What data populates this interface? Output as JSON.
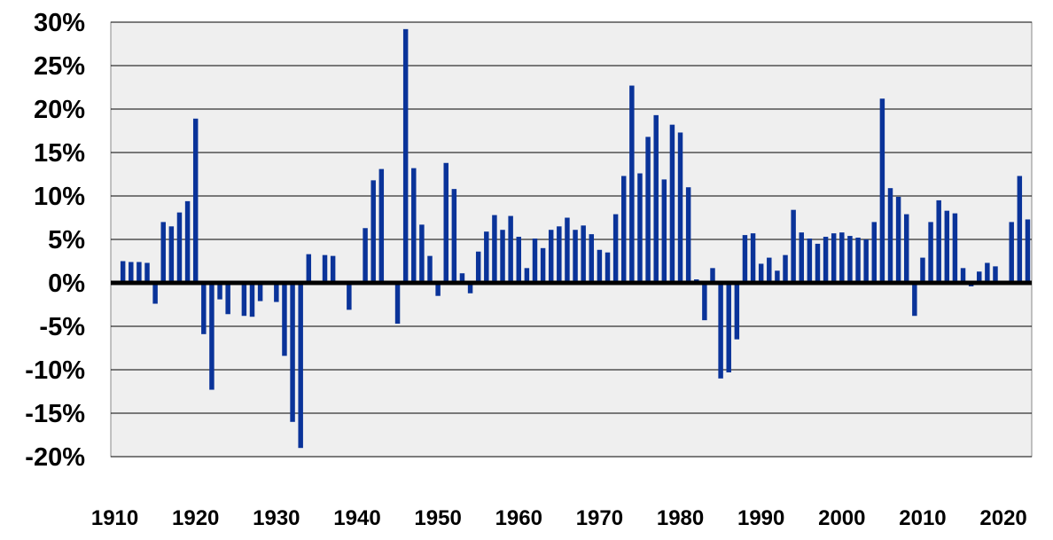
{
  "chart_data": {
    "type": "bar",
    "title": "",
    "xlabel": "",
    "ylabel": "",
    "ylim": [
      -20,
      30
    ],
    "grid": true,
    "legend": "none",
    "y_ticks": [
      30,
      25,
      20,
      15,
      10,
      5,
      0,
      -5,
      -10,
      -15,
      -20
    ],
    "y_tick_labels": [
      "30%",
      "25%",
      "20%",
      "15%",
      "10%",
      "5%",
      "0%",
      "-5%",
      "-10%",
      "-15%",
      "-20%"
    ],
    "x_ticks": [
      1910,
      1920,
      1930,
      1940,
      1950,
      1960,
      1970,
      1980,
      1990,
      2000,
      2010,
      2020
    ],
    "x_tick_labels": [
      "1910",
      "1920",
      "1930",
      "1940",
      "1950",
      "1960",
      "1970",
      "1980",
      "1990",
      "2000",
      "2010",
      "2020"
    ],
    "x_range": [
      1910,
      2023
    ],
    "colors": {
      "bars": "#0a3399",
      "plot_background": "#efefef",
      "gridlines": "#000000",
      "zero_line": "#000000"
    },
    "x": [
      1911,
      1912,
      1913,
      1914,
      1915,
      1916,
      1917,
      1918,
      1919,
      1920,
      1921,
      1922,
      1923,
      1924,
      1925,
      1926,
      1927,
      1928,
      1929,
      1930,
      1931,
      1932,
      1933,
      1934,
      1935,
      1936,
      1937,
      1938,
      1939,
      1940,
      1941,
      1942,
      1943,
      1944,
      1945,
      1946,
      1947,
      1948,
      1949,
      1950,
      1951,
      1952,
      1953,
      1954,
      1955,
      1956,
      1957,
      1958,
      1959,
      1960,
      1961,
      1962,
      1963,
      1964,
      1965,
      1966,
      1967,
      1968,
      1969,
      1970,
      1971,
      1972,
      1973,
      1974,
      1975,
      1976,
      1977,
      1978,
      1979,
      1980,
      1981,
      1982,
      1983,
      1984,
      1985,
      1986,
      1987,
      1988,
      1989,
      1990,
      1991,
      1992,
      1993,
      1994,
      1995,
      1996,
      1997,
      1998,
      1999,
      2000,
      2001,
      2002,
      2003,
      2004,
      2005,
      2006,
      2007,
      2008,
      2009,
      2010,
      2011,
      2012,
      2013,
      2014,
      2015,
      2016,
      2017,
      2018,
      2019,
      2020,
      2021,
      2022,
      2023
    ],
    "values": [
      2.5,
      2.4,
      2.4,
      2.3,
      -2.4,
      7.0,
      6.5,
      8.1,
      9.4,
      18.9,
      -5.9,
      -12.3,
      -1.9,
      -3.6,
      0,
      -3.8,
      -3.9,
      -2.1,
      0,
      -2.2,
      -8.4,
      -16.0,
      -19.0,
      3.3,
      0,
      3.2,
      3.1,
      0,
      -3.1,
      0,
      6.3,
      11.8,
      13.1,
      0,
      -4.7,
      29.2,
      13.2,
      6.7,
      3.1,
      -1.5,
      13.8,
      10.8,
      1.1,
      -1.2,
      3.6,
      5.9,
      7.8,
      6.1,
      7.7,
      5.3,
      1.7,
      5.1,
      4.0,
      6.1,
      6.5,
      7.5,
      6.1,
      6.6,
      5.6,
      3.8,
      3.5,
      7.9,
      12.3,
      22.7,
      12.6,
      16.8,
      19.3,
      11.9,
      18.2,
      17.3,
      11.0,
      0.4,
      -4.3,
      1.7,
      -11.0,
      -10.3,
      -6.5,
      5.5,
      5.7,
      2.2,
      2.9,
      1.4,
      3.2,
      8.4,
      5.8,
      5.1,
      4.5,
      5.3,
      5.7,
      5.8,
      5.4,
      5.2,
      5.0,
      7.0,
      21.2,
      10.9,
      9.9,
      7.9,
      -3.8,
      2.9,
      7.0,
      9.5,
      8.3,
      8.0,
      1.7,
      -0.4,
      1.3,
      2.3,
      1.9,
      0,
      7.0,
      12.3,
      7.3
    ]
  }
}
